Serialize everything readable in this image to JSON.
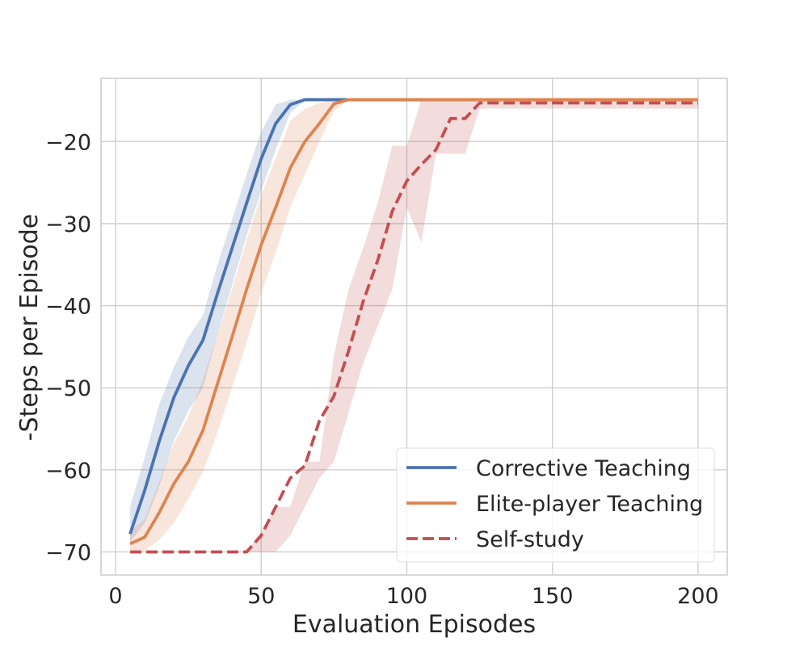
{
  "chart_data": {
    "type": "line",
    "xlabel": "Evaluation Episodes",
    "ylabel": "-Steps per Episode",
    "xlim": [
      -5,
      210
    ],
    "ylim": [
      -72.8,
      -12.3
    ],
    "xticks": [
      0,
      50,
      100,
      150,
      200
    ],
    "yticks": [
      -70,
      -60,
      -50,
      -40,
      -30,
      -20
    ],
    "xtick_labels": [
      "0",
      "50",
      "100",
      "150",
      "200"
    ],
    "ytick_labels": [
      "−70",
      "−60",
      "−50",
      "−40",
      "−30",
      "−20"
    ],
    "grid": true,
    "legend_position": "lower-right",
    "series": [
      {
        "name": "Corrective Teaching",
        "color": "#4c72b0",
        "style": "solid",
        "x": [
          5,
          10,
          15,
          20,
          25,
          30,
          35,
          40,
          45,
          50,
          55,
          60,
          65,
          70,
          75,
          80,
          85,
          90,
          95,
          100,
          105,
          110,
          115,
          120,
          125,
          130,
          135,
          140,
          145,
          150,
          155,
          160,
          165,
          170,
          175,
          180,
          185,
          190,
          195,
          200
        ],
        "y": [
          -67.8,
          -62.5,
          -56.5,
          -51.2,
          -47.3,
          -44.2,
          -38.5,
          -33.0,
          -27.5,
          -22.1,
          -17.8,
          -15.5,
          -14.9,
          -14.9,
          -14.9,
          -14.9,
          -14.9,
          -14.9,
          -14.9,
          -14.9,
          -14.9,
          -14.9,
          -14.9,
          -14.9,
          -14.9,
          -14.9,
          -14.9,
          -14.9,
          -14.9,
          -14.9,
          -14.9,
          -14.9,
          -14.9,
          -14.9,
          -14.9,
          -14.9,
          -14.9,
          -14.9,
          -14.9,
          -14.9
        ],
        "lower": [
          -68.8,
          -66.5,
          -62.0,
          -56.5,
          -52.8,
          -50.0,
          -43.5,
          -37.5,
          -31.5,
          -26.0,
          -21.0,
          -16.5,
          -15.0,
          -14.9,
          -14.9,
          -14.9,
          -14.9,
          -14.9,
          -14.9,
          -14.9,
          -14.9,
          -14.9,
          -14.9,
          -14.9,
          -14.9,
          -14.9,
          -14.9,
          -14.9,
          -14.9,
          -14.9,
          -14.9,
          -14.9,
          -14.9,
          -14.9,
          -14.9,
          -14.9,
          -14.9,
          -14.9,
          -14.9,
          -14.9
        ],
        "upper": [
          -64.5,
          -58.5,
          -52.0,
          -47.5,
          -43.8,
          -41.2,
          -35.0,
          -29.5,
          -24.0,
          -18.8,
          -15.5,
          -14.9,
          -14.9,
          -14.9,
          -14.9,
          -14.9,
          -14.9,
          -14.9,
          -14.9,
          -14.9,
          -14.9,
          -14.9,
          -14.9,
          -14.9,
          -14.9,
          -14.9,
          -14.9,
          -14.9,
          -14.9,
          -14.9,
          -14.9,
          -14.9,
          -14.9,
          -14.9,
          -14.9,
          -14.9,
          -14.9,
          -14.9,
          -14.9,
          -14.9
        ]
      },
      {
        "name": "Elite-player Teaching",
        "color": "#dd8452",
        "style": "solid",
        "x": [
          5,
          10,
          15,
          20,
          25,
          30,
          35,
          40,
          45,
          50,
          55,
          60,
          65,
          70,
          75,
          80,
          85,
          90,
          95,
          100,
          105,
          110,
          115,
          120,
          125,
          130,
          135,
          140,
          145,
          150,
          155,
          160,
          165,
          170,
          175,
          180,
          185,
          190,
          195,
          200
        ],
        "y": [
          -69.0,
          -68.2,
          -65.2,
          -61.7,
          -59.0,
          -55.2,
          -49.5,
          -43.8,
          -38.0,
          -32.6,
          -28.0,
          -23.2,
          -20.0,
          -17.8,
          -15.4,
          -14.9,
          -14.9,
          -14.9,
          -14.9,
          -14.9,
          -14.9,
          -14.9,
          -14.9,
          -14.9,
          -14.9,
          -14.9,
          -14.9,
          -14.9,
          -14.9,
          -14.9,
          -14.9,
          -14.9,
          -14.9,
          -14.9,
          -14.9,
          -14.9,
          -14.9,
          -14.9,
          -14.9,
          -14.9
        ],
        "lower": [
          -69.9,
          -69.9,
          -68.5,
          -66.5,
          -63.5,
          -60.3,
          -55.5,
          -50.0,
          -44.5,
          -38.5,
          -33.5,
          -28.0,
          -24.0,
          -20.0,
          -16.3,
          -14.9,
          -14.9,
          -14.9,
          -14.9,
          -14.9,
          -14.9,
          -14.9,
          -14.9,
          -14.9,
          -14.9,
          -14.9,
          -14.9,
          -14.9,
          -14.9,
          -14.9,
          -14.9,
          -14.9,
          -14.9,
          -14.9,
          -14.9,
          -14.9,
          -14.9,
          -14.9,
          -14.9,
          -14.9
        ],
        "upper": [
          -67.5,
          -66.0,
          -61.5,
          -56.8,
          -53.5,
          -49.0,
          -43.5,
          -38.0,
          -32.0,
          -26.5,
          -22.0,
          -17.5,
          -16.0,
          -15.3,
          -14.9,
          -14.9,
          -14.9,
          -14.9,
          -14.9,
          -14.9,
          -14.9,
          -14.9,
          -14.9,
          -14.9,
          -14.9,
          -14.9,
          -14.9,
          -14.9,
          -14.9,
          -14.9,
          -14.9,
          -14.9,
          -14.9,
          -14.9,
          -14.9,
          -14.9,
          -14.9,
          -14.9,
          -14.9,
          -14.9
        ]
      },
      {
        "name": "Self-study",
        "color": "#c44e52",
        "style": "dashed",
        "x": [
          5,
          10,
          15,
          20,
          25,
          30,
          35,
          40,
          45,
          50,
          55,
          60,
          65,
          70,
          75,
          80,
          85,
          90,
          95,
          100,
          105,
          110,
          115,
          120,
          125,
          130,
          135,
          140,
          145,
          150,
          155,
          160,
          165,
          170,
          175,
          180,
          185,
          190,
          195,
          200
        ],
        "y": [
          -70.0,
          -70.0,
          -70.0,
          -70.0,
          -70.0,
          -70.0,
          -70.0,
          -70.0,
          -70.0,
          -68.0,
          -64.5,
          -61.0,
          -59.5,
          -54.0,
          -51.0,
          -45.5,
          -39.5,
          -34.5,
          -28.5,
          -24.8,
          -22.8,
          -21.0,
          -17.2,
          -17.2,
          -15.3,
          -15.3,
          -15.3,
          -15.3,
          -15.3,
          -15.3,
          -15.3,
          -15.3,
          -15.3,
          -15.3,
          -15.3,
          -15.3,
          -15.3,
          -15.3,
          -15.3,
          -15.3
        ],
        "lower": [
          -70.0,
          -70.0,
          -70.0,
          -70.0,
          -70.0,
          -70.0,
          -70.0,
          -70.0,
          -70.0,
          -70.0,
          -70.0,
          -68.0,
          -64.5,
          -61.0,
          -59.0,
          -53.0,
          -47.0,
          -42.5,
          -38.0,
          -28.0,
          -32.3,
          -21.5,
          -21.5,
          -21.5,
          -16.0,
          -16.0,
          -16.0,
          -16.0,
          -16.0,
          -16.0,
          -16.0,
          -16.0,
          -16.0,
          -16.0,
          -16.0,
          -16.0,
          -16.0,
          -16.0,
          -16.0,
          -16.0
        ],
        "upper": [
          -70.0,
          -70.0,
          -70.0,
          -70.0,
          -70.0,
          -70.0,
          -70.0,
          -70.0,
          -70.0,
          -67.5,
          -64.5,
          -64.5,
          -59.0,
          -59.0,
          -46.0,
          -38.0,
          -33.0,
          -27.5,
          -20.5,
          -20.5,
          -14.9,
          -14.9,
          -14.9,
          -14.9,
          -14.9,
          -14.9,
          -14.9,
          -14.9,
          -14.9,
          -14.9,
          -14.9,
          -14.9,
          -14.9,
          -14.9,
          -14.9,
          -14.9,
          -14.9,
          -14.9,
          -14.9,
          -14.9
        ]
      }
    ]
  }
}
